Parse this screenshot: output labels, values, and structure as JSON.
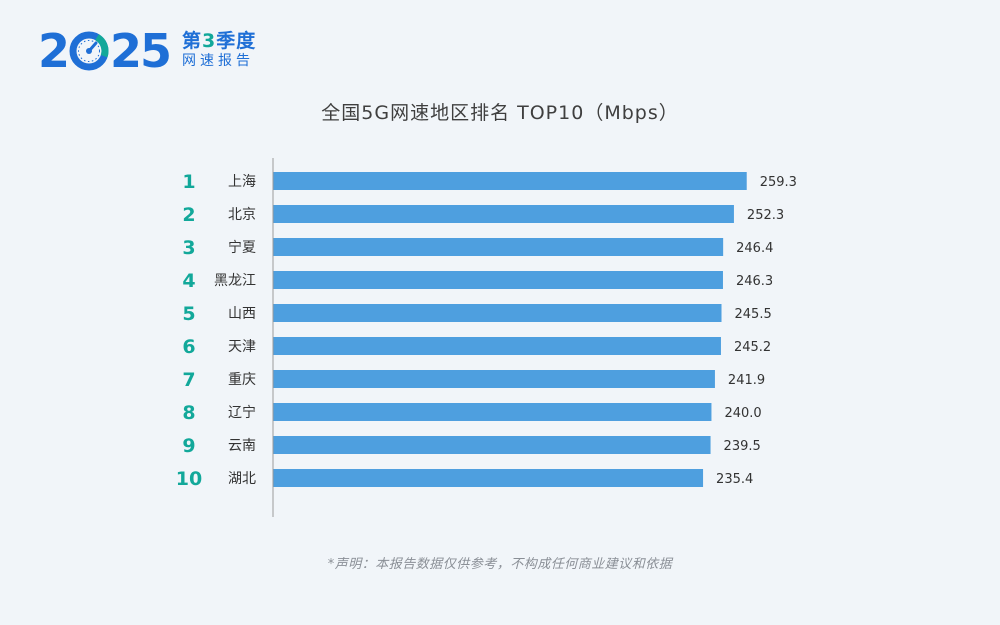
{
  "logo": {
    "year_digits": [
      "2",
      "25"
    ],
    "quarter_prefix": "第",
    "quarter_num": "3",
    "quarter_suffix": "季度",
    "subtitle": "网速报告"
  },
  "colors": {
    "brand_blue": "#1f6fd6",
    "accent_teal": "#12a89a",
    "bar": "#4e9fdf",
    "background": "#f1f5f9"
  },
  "icons": {
    "gauge": "speedometer-icon"
  },
  "chart_data": {
    "type": "bar",
    "orientation": "horizontal",
    "title": "全国5G网速地区排名 TOP10（Mbps）",
    "ranks": [
      "1",
      "2",
      "3",
      "4",
      "5",
      "6",
      "7",
      "8",
      "9",
      "10"
    ],
    "categories": [
      "上海",
      "北京",
      "宁夏",
      "黑龙江",
      "山西",
      "天津",
      "重庆",
      "辽宁",
      "云南",
      "湖北"
    ],
    "values": [
      259.3,
      252.3,
      246.4,
      246.3,
      245.5,
      245.2,
      241.9,
      240.0,
      239.5,
      235.4
    ],
    "value_labels": [
      "259.3",
      "252.3",
      "246.4",
      "246.3",
      "245.5",
      "245.2",
      "241.9",
      "240.0",
      "239.5",
      "235.4"
    ],
    "xlim": [
      0,
      260
    ],
    "grid": false,
    "legend": "none"
  },
  "footer": {
    "disclaimer": "*声明：本报告数据仅供参考，不构成任何商业建议和依据"
  }
}
